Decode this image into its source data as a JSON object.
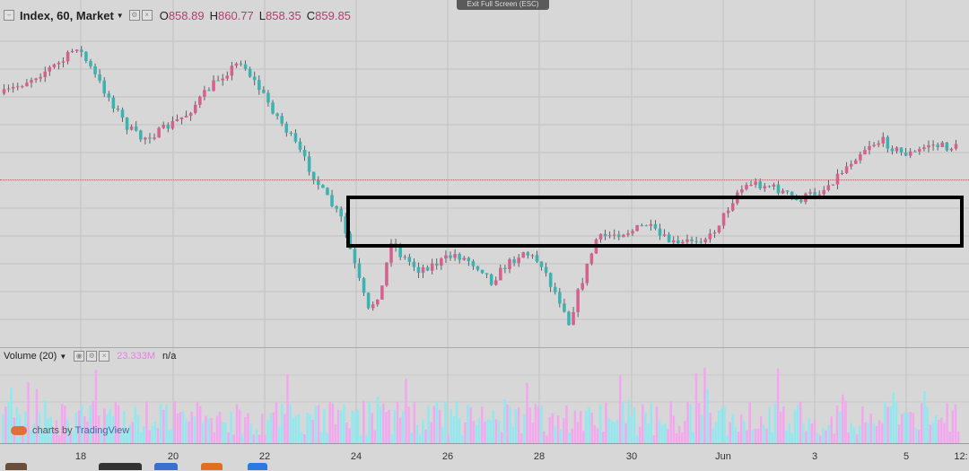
{
  "legend": {
    "symbol_label": "Index, 60, Market",
    "open_key": "O",
    "open_val": "858.89",
    "high_key": "H",
    "high_val": "860.77",
    "low_key": "L",
    "low_val": "858.35",
    "close_key": "C",
    "close_val": "859.85"
  },
  "volume_legend": {
    "label": "Volume (20)",
    "value": "23.333M",
    "extra": "n/a"
  },
  "exit_fullscreen_label": "Exit Full Screen (ESC)",
  "branding": {
    "prefix": "charts by",
    "name": "TradingView"
  },
  "time_axis": {
    "labels": [
      "18",
      "20",
      "22",
      "24",
      "26",
      "28",
      "30",
      "Jun",
      "3",
      "5",
      "12:"
    ]
  },
  "colors": {
    "up": "#d6608e",
    "down": "#3bb3b3",
    "vol_up": "#f2a7ee",
    "vol_down": "#8fe9ef",
    "highlight": "#000000"
  },
  "chart_data": {
    "type": "candlestick",
    "symbol": "Index",
    "interval": "60",
    "last_bar": {
      "open": 858.89,
      "high": 860.77,
      "low": 858.35,
      "close": 859.85
    },
    "price_path": [
      [
        0,
        0.77
      ],
      [
        7,
        0.83
      ],
      [
        13,
        0.88
      ],
      [
        16,
        0.93
      ],
      [
        20,
        0.83
      ],
      [
        27,
        0.66
      ],
      [
        30,
        0.62
      ],
      [
        34,
        0.64
      ],
      [
        40,
        0.7
      ],
      [
        47,
        0.82
      ],
      [
        52,
        0.88
      ],
      [
        58,
        0.74
      ],
      [
        64,
        0.6
      ],
      [
        70,
        0.44
      ],
      [
        74,
        0.35
      ],
      [
        78,
        0.14
      ],
      [
        80,
        0.04
      ],
      [
        83,
        0.12
      ],
      [
        85,
        0.28
      ],
      [
        87,
        0.23
      ],
      [
        91,
        0.18
      ],
      [
        95,
        0.2
      ],
      [
        99,
        0.23
      ],
      [
        102,
        0.21
      ],
      [
        105,
        0.18
      ],
      [
        107,
        0.14
      ],
      [
        110,
        0.19
      ],
      [
        114,
        0.24
      ],
      [
        116,
        0.22
      ],
      [
        118,
        0.2
      ],
      [
        120,
        0.13
      ],
      [
        123,
        0.05
      ],
      [
        124,
        0.0
      ],
      [
        126,
        0.1
      ],
      [
        130,
        0.28
      ],
      [
        134,
        0.3
      ],
      [
        138,
        0.31
      ],
      [
        141,
        0.33
      ],
      [
        144,
        0.29
      ],
      [
        148,
        0.26
      ],
      [
        151,
        0.28
      ],
      [
        155,
        0.29
      ],
      [
        158,
        0.36
      ],
      [
        161,
        0.44
      ],
      [
        164,
        0.47
      ],
      [
        168,
        0.46
      ],
      [
        171,
        0.44
      ],
      [
        174,
        0.41
      ],
      [
        177,
        0.43
      ],
      [
        180,
        0.45
      ],
      [
        184,
        0.51
      ],
      [
        187,
        0.56
      ],
      [
        190,
        0.6
      ],
      [
        193,
        0.61
      ],
      [
        197,
        0.57
      ],
      [
        200,
        0.57
      ],
      [
        203,
        0.6
      ],
      [
        207,
        0.59
      ]
    ],
    "date_labels": [
      "18",
      "20",
      "22",
      "24",
      "26",
      "28",
      "30",
      "Jun",
      "3",
      "5",
      "12:"
    ],
    "annotations": {
      "highlight_box": "rectangle around consolidation range"
    }
  }
}
